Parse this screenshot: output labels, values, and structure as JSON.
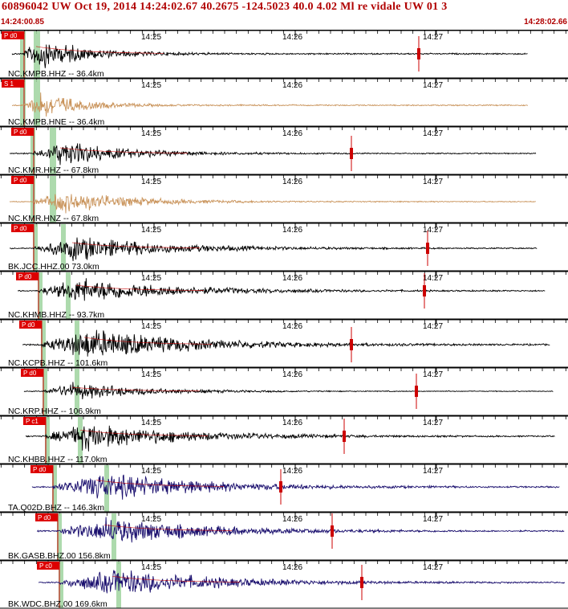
{
  "header": {
    "title": "60896042 UW Oct 19, 2014 14:24:02.67    40.2675 -124.5023 40.0 4.02 Ml re vidale UW 01    3",
    "start_time": "14:24:00.85",
    "end_time": "14:28:02.66"
  },
  "time_ticks": [
    "14:25",
    "14:26",
    "14:27"
  ],
  "colors": {
    "header_text": "#b00000",
    "pick": "#cc0000",
    "pick_bg": "#dd0000",
    "zone": "#9fd49f",
    "panel_border": "#000000",
    "synthetic": "#cc0000"
  },
  "channels": [
    {
      "label": "NC.KMPB.HHZ -- 36.4km",
      "pick": "P d0",
      "trace_color": "#000000"
    },
    {
      "label": "NC.KMPB.HNE -- 36.4km",
      "pick": "S 1",
      "trace_color": "#c9935a"
    },
    {
      "label": "NC.KMR.HHZ -- 67.8km",
      "pick": "P d0",
      "trace_color": "#000000"
    },
    {
      "label": "NC.KMR.HNZ -- 67.8km",
      "pick": "P d0",
      "trace_color": "#c9935a"
    },
    {
      "label": "BK.JCC.HHZ.00 73.0km",
      "pick": "P d0",
      "trace_color": "#000000"
    },
    {
      "label": "NC.KHMB.HHZ -- 93.7km",
      "pick": "P d0",
      "trace_color": "#000000"
    },
    {
      "label": "NC.KCPB.HHZ -- 101.6km",
      "pick": "P d0",
      "trace_color": "#000000"
    },
    {
      "label": "NC.KRP.HHZ -- 106.9km",
      "pick": "P d0",
      "trace_color": "#000000"
    },
    {
      "label": "NC.KHBB.HHZ -- 117.0km",
      "pick": "P c1",
      "trace_color": "#000000"
    },
    {
      "label": "TA.Q02D.BHZ -- 146.3km",
      "pick": "P d0",
      "trace_color": "#1a0f6e"
    },
    {
      "label": "BK.GASB.BHZ.00 156.8km",
      "pick": "P d0",
      "trace_color": "#1a0f6e"
    },
    {
      "label": "BK.WDC.BHZ.00 169.6km",
      "pick": "P c0",
      "trace_color": "#1a0f6e"
    }
  ]
}
